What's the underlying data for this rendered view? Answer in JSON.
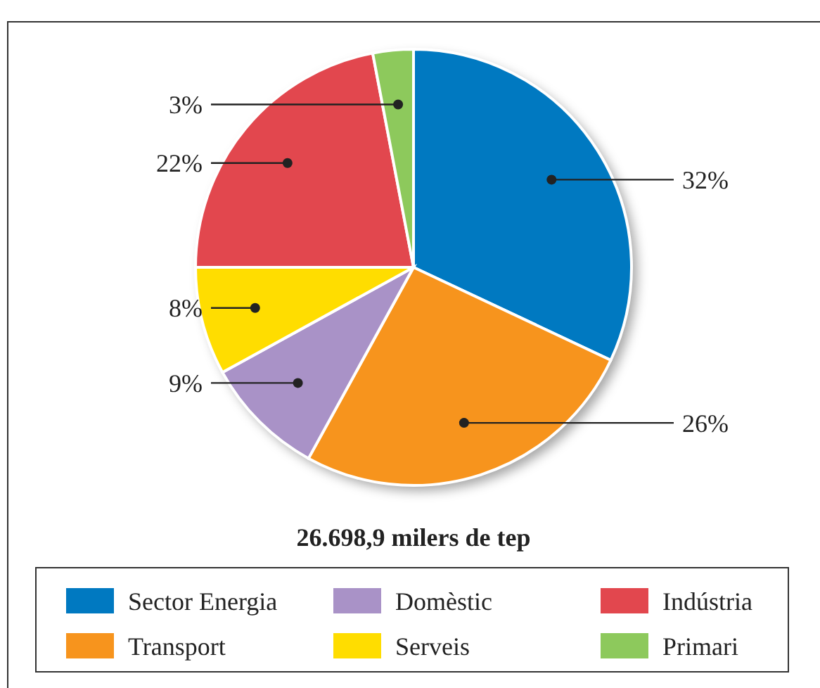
{
  "chart_data": {
    "type": "pie",
    "title": "26.698,9 milers de tep",
    "categories": [
      "Sector Energia",
      "Transport",
      "Domèstic",
      "Serveis",
      "Indústria",
      "Primari"
    ],
    "values": [
      32,
      26,
      9,
      8,
      22,
      3
    ],
    "colors": [
      "#0079c1",
      "#f7941d",
      "#a992c7",
      "#ffdd00",
      "#e2474e",
      "#8dc95c"
    ],
    "value_labels": [
      "32%",
      "26%",
      "9%",
      "8%",
      "22%",
      "3%"
    ],
    "legend": "bottom"
  }
}
